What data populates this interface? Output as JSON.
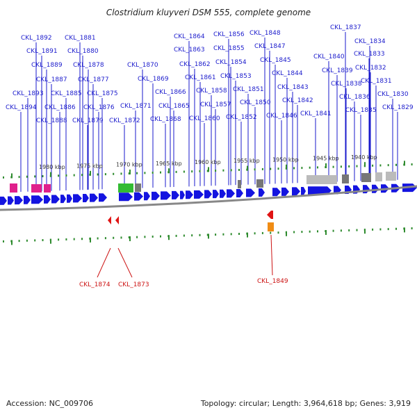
{
  "title": "Clostridium kluyveri DSM 555, complete genome",
  "colors": {
    "plus_gene": "#1414e0",
    "minus_gene": "#e01414",
    "plus_label": "#1a1acc",
    "minus_label": "#cc1111",
    "rrna_pink": "#e0208c",
    "green_feature": "#33bb33",
    "orange_feature": "#f08c14",
    "gray_feature": "#777777",
    "light_gray_feature": "#bbbbbb",
    "tick_green": "#2e8b2e",
    "backbone": "#888888"
  },
  "kbp_ticks": [
    "1980 kbp",
    "1975 kbp",
    "1970 kbp",
    "1965 kbp",
    "1960 kbp",
    "1955 kbp",
    "1950 kbp",
    "1945 kbp",
    "1940 kbp"
  ],
  "plus_strand_labels": [
    "CKL_1892",
    "CKL_1891",
    "CKL_1889",
    "CKL_1887",
    "CKL_1893",
    "CKL_1894",
    "CKL_1885",
    "CKL_1886",
    "CKL_1888",
    "CKL_1881",
    "CKL_1880",
    "CKL_1878",
    "CKL_1877",
    "CKL_1875",
    "CKL_1876",
    "CKL_1879",
    "CKL_1870",
    "CKL_1871",
    "CKL_1872",
    "CKL_1869",
    "CKL_1866",
    "CKL_1865",
    "CKL_1868",
    "CKL_1864",
    "CKL_1863",
    "CKL_1862",
    "CKL_1861",
    "CKL_1860",
    "CKL_1856",
    "CKL_1855",
    "CKL_1854",
    "CKL_1853",
    "CKL_1858",
    "CKL_1857",
    "CKL_1851",
    "CKL_1852",
    "CKL_1848",
    "CKL_1847",
    "CKL_1845",
    "CKL_1844",
    "CKL_1843",
    "CKL_1850",
    "CKL_1842",
    "CKL_1846",
    "CKL_1841",
    "CKL_1840",
    "CKL_1839",
    "CKL_1837",
    "CKL_1834",
    "CKL_1833",
    "CKL_1832",
    "CKL_1838",
    "CKL_1831",
    "CKL_1836",
    "CKL_1830",
    "CKL_1835",
    "CKL_1829"
  ],
  "minus_strand_labels": [
    "CKL_1874",
    "CKL_1873",
    "CKL_1849"
  ],
  "footer": {
    "accession": "Accession: NC_009706",
    "details": "Topology: circular; Length: 3,964,618 bp; Genes: 3,919"
  }
}
